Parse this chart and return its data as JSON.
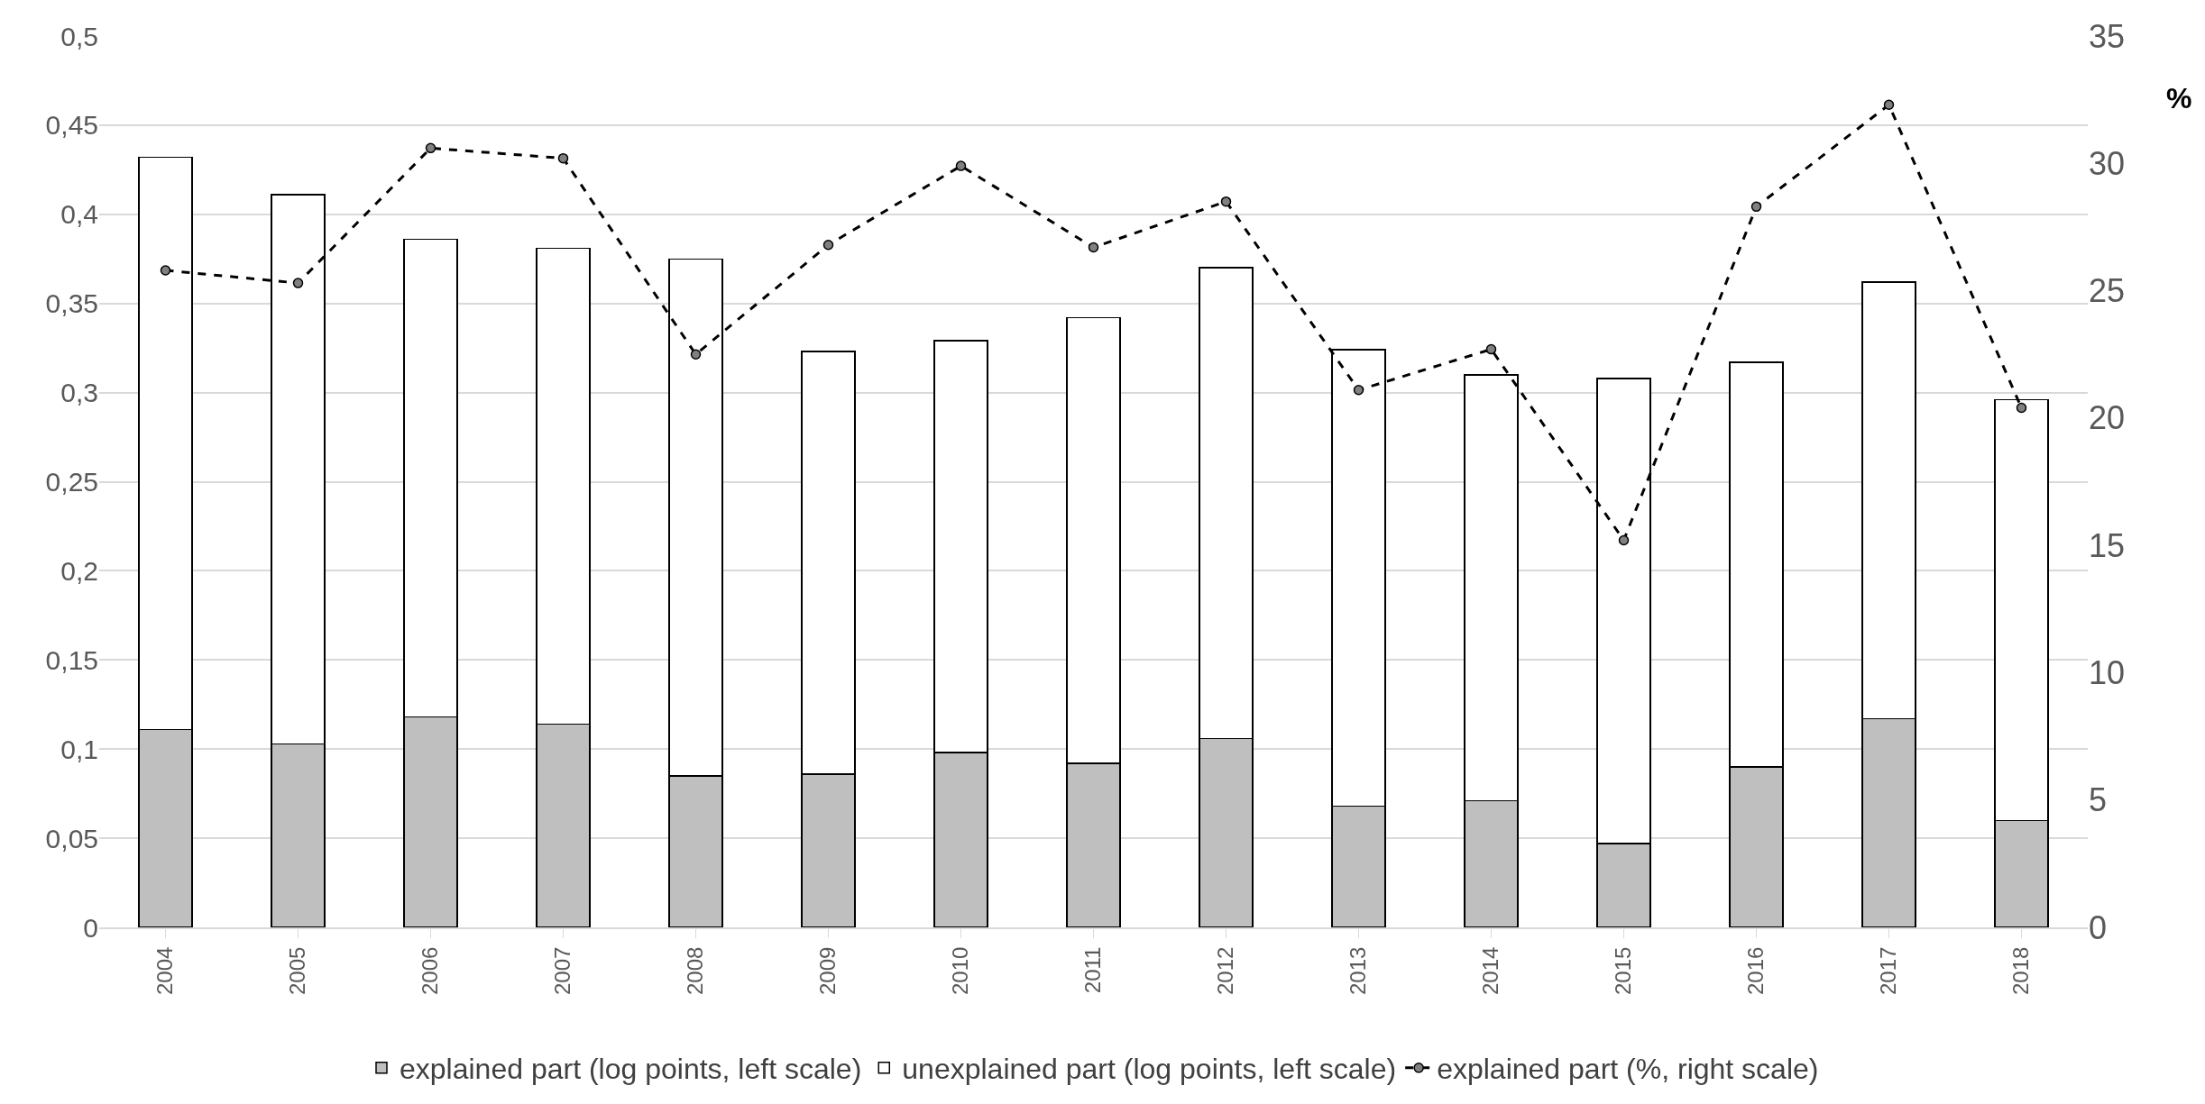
{
  "chart_data": {
    "type": "bar",
    "stacked": true,
    "categories": [
      "2004",
      "2005",
      "2006",
      "2007",
      "2008",
      "2009",
      "2010",
      "2011",
      "2012",
      "2013",
      "2014",
      "2015",
      "2016",
      "2017",
      "2018"
    ],
    "series": [
      {
        "name": "explained part (log points, left scale)",
        "color": "#bfbfbf",
        "values": [
          0.111,
          0.103,
          0.118,
          0.114,
          0.085,
          0.086,
          0.098,
          0.092,
          0.106,
          0.068,
          0.071,
          0.047,
          0.09,
          0.117,
          0.06
        ]
      },
      {
        "name": "unexplained part (log points, left scale)",
        "color": "#ffffff",
        "values": [
          0.321,
          0.308,
          0.268,
          0.267,
          0.29,
          0.237,
          0.231,
          0.25,
          0.264,
          0.256,
          0.239,
          0.261,
          0.227,
          0.245,
          0.236
        ]
      },
      {
        "name": "explained part (%, right scale)",
        "type": "line",
        "axis": "y2",
        "color": "#000000",
        "marker": "circle",
        "line_style": "dashed",
        "values": [
          25.8,
          25.3,
          30.6,
          30.2,
          22.5,
          26.8,
          29.9,
          26.7,
          28.5,
          21.1,
          22.7,
          15.2,
          28.3,
          32.3,
          20.4
        ]
      }
    ],
    "y2label": "%",
    "ylim": [
      0,
      0.5
    ],
    "yticks": [
      0,
      {
        "value": 0.05,
        "label": "0,05"
      },
      {
        "value": 0.1,
        "label": "0,1"
      },
      {
        "value": 0.15,
        "label": "0,15"
      },
      {
        "value": 0.2,
        "label": "0,2"
      },
      {
        "value": 0.25,
        "label": "0,25"
      },
      {
        "value": 0.3,
        "label": "0,3"
      },
      {
        "value": 0.35,
        "label": "0,35"
      },
      {
        "value": 0.4,
        "label": "0,4"
      },
      {
        "value": 0.45,
        "label": "0,45"
      },
      {
        "value": 0.5,
        "label": "0,5"
      }
    ],
    "y2lim": [
      0,
      35
    ],
    "y2ticks": [
      0,
      5,
      10,
      15,
      20,
      25,
      30,
      35
    ],
    "grid": "y",
    "legend": "bottom"
  }
}
